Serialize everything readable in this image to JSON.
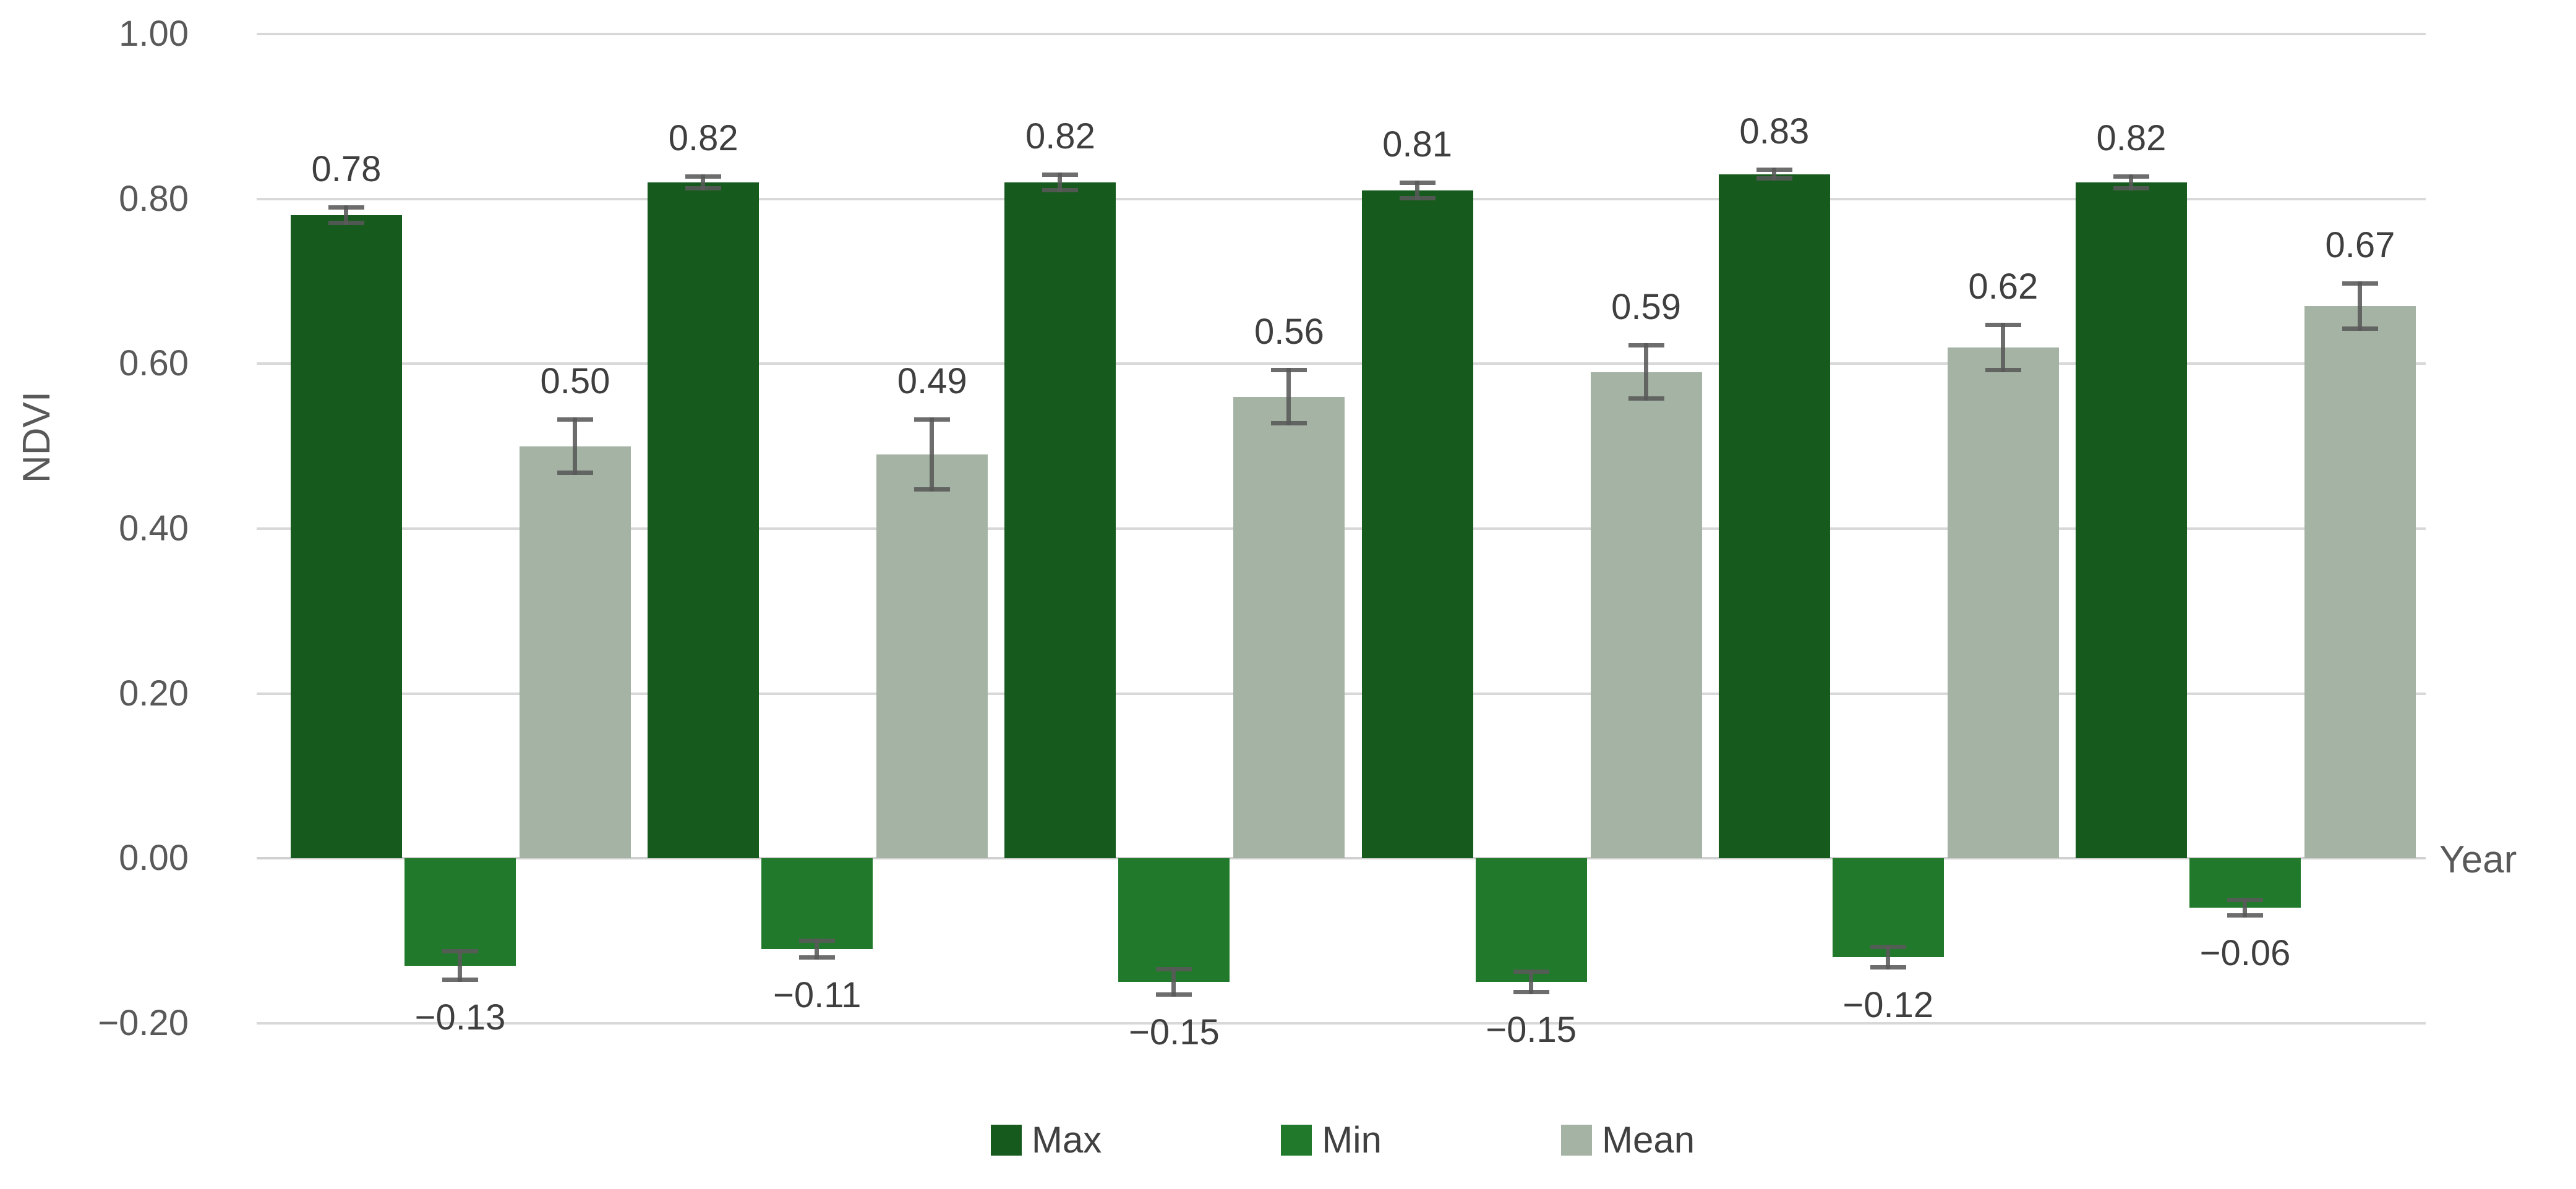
{
  "chart_data": {
    "type": "bar",
    "title": "",
    "ylabel": "NDVI",
    "xlabel": "Year",
    "ylim": [
      -0.2,
      1.0
    ],
    "grid": true,
    "legend_position": "bottom",
    "yticks": [
      {
        "value": 1.0,
        "label": "1.00"
      },
      {
        "value": 0.8,
        "label": "0.80"
      },
      {
        "value": 0.6,
        "label": "0.60"
      },
      {
        "value": 0.4,
        "label": "0.40"
      },
      {
        "value": 0.2,
        "label": "0.20"
      },
      {
        "value": 0.0,
        "label": "0.00"
      },
      {
        "value": -0.2,
        "label": "−0.20"
      }
    ],
    "categories": [
      "",
      "",
      "",
      "",
      "",
      ""
    ],
    "series": [
      {
        "name": "Max",
        "color": "#175a1e",
        "values": [
          0.78,
          0.82,
          0.82,
          0.81,
          0.83,
          0.82
        ],
        "labels": [
          "0.78",
          "0.82",
          "0.82",
          "0.81",
          "0.83",
          "0.82"
        ],
        "errors": [
          0.012,
          0.01,
          0.012,
          0.012,
          0.008,
          0.01
        ]
      },
      {
        "name": "Min",
        "color": "#217a2b",
        "values": [
          -0.13,
          -0.11,
          -0.15,
          -0.15,
          -0.12,
          -0.06
        ],
        "labels": [
          "−0.13",
          "−0.11",
          "−0.15",
          "−0.15",
          "−0.12",
          "−0.06"
        ],
        "errors": [
          0.02,
          0.013,
          0.018,
          0.015,
          0.015,
          0.012
        ]
      },
      {
        "name": "Mean",
        "color": "#a4b3a4",
        "values": [
          0.5,
          0.49,
          0.56,
          0.59,
          0.62,
          0.67
        ],
        "labels": [
          "0.50",
          "0.49",
          "0.56",
          "0.59",
          "0.62",
          "0.67"
        ],
        "errors": [
          0.035,
          0.045,
          0.035,
          0.035,
          0.03,
          0.03
        ]
      }
    ],
    "colors": {
      "background": "#ffffff",
      "gridline": "#d8d8d8",
      "zero_line": "#d0d0d0",
      "axis_text": "#595959",
      "value_label": "#3f3f3f",
      "error_bar": "#595959"
    }
  }
}
